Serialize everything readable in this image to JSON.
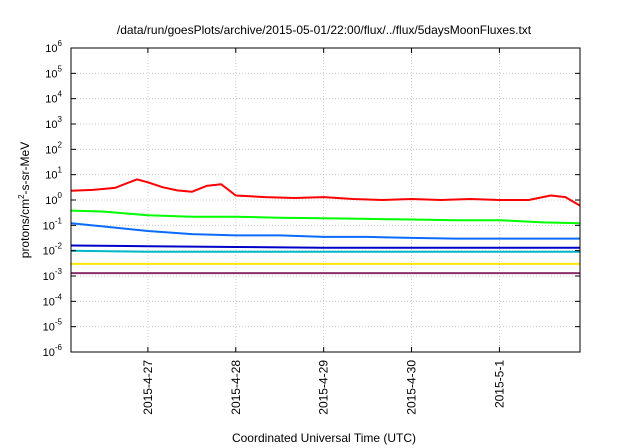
{
  "chart_data": {
    "type": "line",
    "title": "/data/run/goesPlots/archive/2015-05-01/22:00/flux/../flux/5daysMoonFluxes.txt",
    "xlabel": "Coordinated Universal Time (UTC)",
    "ylabel_base": "protons/cm",
    "ylabel_sup": "2",
    "ylabel_rest": "-s-sr-MeV",
    "y_scale": "log",
    "ylim": [
      1e-06,
      1000000.0
    ],
    "y_ticks": [
      {
        "base": "10",
        "exp": "-6",
        "value": 1e-06
      },
      {
        "base": "10",
        "exp": "-5",
        "value": 1e-05
      },
      {
        "base": "10",
        "exp": "-4",
        "value": 0.0001
      },
      {
        "base": "10",
        "exp": "-3",
        "value": 0.001
      },
      {
        "base": "10",
        "exp": "-2",
        "value": 0.01
      },
      {
        "base": "10",
        "exp": "-1",
        "value": 0.1
      },
      {
        "base": "10",
        "exp": "0",
        "value": 1
      },
      {
        "base": "10",
        "exp": "1",
        "value": 10
      },
      {
        "base": "10",
        "exp": "2",
        "value": 100
      },
      {
        "base": "10",
        "exp": "3",
        "value": 1000
      },
      {
        "base": "10",
        "exp": "4",
        "value": 10000
      },
      {
        "base": "10",
        "exp": "5",
        "value": 100000
      },
      {
        "base": "10",
        "exp": "6",
        "value": 1000000
      }
    ],
    "xlim": [
      "2015-04-26T03:00",
      "2015-05-01T22:00"
    ],
    "x_ticks": [
      {
        "label": "2015-4-27",
        "value": "2015-04-27T00:00"
      },
      {
        "label": "2015-4-28",
        "value": "2015-04-28T00:00"
      },
      {
        "label": "2015-4-29",
        "value": "2015-04-29T00:00"
      },
      {
        "label": "2015-4-30",
        "value": "2015-04-30T00:00"
      },
      {
        "label": "2015-5-1",
        "value": "2015-05-01T00:00"
      }
    ],
    "grid": true,
    "legend": "none",
    "series": [
      {
        "color": "#ff0000",
        "x": [
          "2015-04-26T03:00",
          "2015-04-26T09:00",
          "2015-04-26T15:00",
          "2015-04-26T21:00",
          "2015-04-27T00:00",
          "2015-04-27T04:00",
          "2015-04-27T08:00",
          "2015-04-27T12:00",
          "2015-04-27T16:00",
          "2015-04-27T20:00",
          "2015-04-28T00:00",
          "2015-04-28T08:00",
          "2015-04-28T16:00",
          "2015-04-29T00:00",
          "2015-04-29T08:00",
          "2015-04-29T16:00",
          "2015-04-30T00:00",
          "2015-04-30T08:00",
          "2015-04-30T16:00",
          "2015-05-01T00:00",
          "2015-05-01T08:00",
          "2015-05-01T14:00",
          "2015-05-01T18:00",
          "2015-05-01T22:00"
        ],
        "values": [
          2.3,
          2.5,
          3.0,
          6.5,
          5.0,
          3.2,
          2.4,
          2.1,
          3.6,
          4.2,
          1.5,
          1.3,
          1.2,
          1.3,
          1.1,
          1.0,
          1.1,
          1.0,
          1.1,
          1.0,
          1.0,
          1.5,
          1.3,
          0.6
        ]
      },
      {
        "color": "#00ff00",
        "x": [
          "2015-04-26T03:00",
          "2015-04-26T12:00",
          "2015-04-27T00:00",
          "2015-04-27T12:00",
          "2015-04-28T00:00",
          "2015-04-28T12:00",
          "2015-04-29T00:00",
          "2015-04-29T12:00",
          "2015-04-30T00:00",
          "2015-04-30T12:00",
          "2015-05-01T00:00",
          "2015-05-01T12:00",
          "2015-05-01T22:00"
        ],
        "values": [
          0.38,
          0.35,
          0.25,
          0.22,
          0.22,
          0.2,
          0.19,
          0.18,
          0.17,
          0.16,
          0.16,
          0.13,
          0.12
        ]
      },
      {
        "color": "#0a6cff",
        "x": [
          "2015-04-26T03:00",
          "2015-04-26T12:00",
          "2015-04-27T00:00",
          "2015-04-27T12:00",
          "2015-04-28T00:00",
          "2015-04-28T12:00",
          "2015-04-29T00:00",
          "2015-04-29T12:00",
          "2015-04-30T00:00",
          "2015-04-30T12:00",
          "2015-05-01T00:00",
          "2015-05-01T12:00",
          "2015-05-01T22:00"
        ],
        "values": [
          0.12,
          0.09,
          0.06,
          0.045,
          0.04,
          0.04,
          0.035,
          0.035,
          0.032,
          0.03,
          0.03,
          0.03,
          0.03
        ]
      },
      {
        "color": "#00b8c8",
        "x": [
          "2015-04-26T03:00",
          "2015-04-27T00:00",
          "2015-04-28T00:00",
          "2015-04-29T00:00",
          "2015-04-30T00:00",
          "2015-05-01T00:00",
          "2015-05-01T22:00"
        ],
        "values": [
          0.01,
          0.009,
          0.009,
          0.009,
          0.009,
          0.009,
          0.009
        ]
      },
      {
        "color": "#0000c8",
        "x": [
          "2015-04-26T03:00",
          "2015-04-27T00:00",
          "2015-04-28T00:00",
          "2015-04-29T00:00",
          "2015-04-30T00:00",
          "2015-05-01T00:00",
          "2015-05-01T22:00"
        ],
        "values": [
          0.016,
          0.015,
          0.014,
          0.013,
          0.013,
          0.013,
          0.013
        ]
      },
      {
        "color": "#ffe600",
        "x": [
          "2015-04-26T03:00",
          "2015-04-27T00:00",
          "2015-04-28T00:00",
          "2015-04-29T00:00",
          "2015-04-30T00:00",
          "2015-05-01T00:00",
          "2015-05-01T22:00"
        ],
        "values": [
          0.003,
          0.003,
          0.003,
          0.003,
          0.003,
          0.003,
          0.003
        ]
      },
      {
        "color": "#8b2f6b",
        "x": [
          "2015-04-26T03:00",
          "2015-04-27T00:00",
          "2015-04-28T00:00",
          "2015-04-29T00:00",
          "2015-04-30T00:00",
          "2015-05-01T00:00",
          "2015-05-01T22:00"
        ],
        "values": [
          0.0013,
          0.0013,
          0.0013,
          0.0013,
          0.0013,
          0.0013,
          0.0013
        ]
      }
    ]
  }
}
